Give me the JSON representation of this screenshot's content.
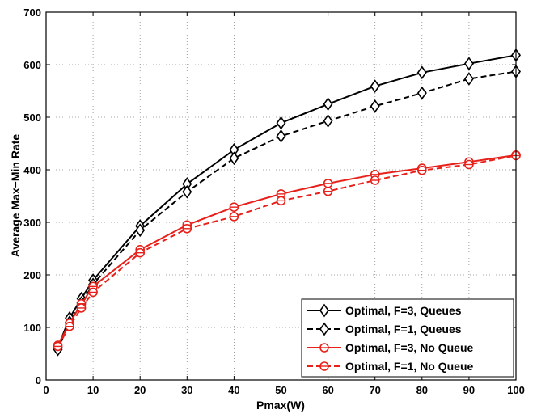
{
  "chart_data": {
    "type": "line",
    "title": "",
    "xlabel": "Pmax(W)",
    "ylabel": "Average Max−Min Rate",
    "xlim": [
      0,
      100
    ],
    "ylim": [
      0,
      700
    ],
    "xticks": [
      0,
      10,
      20,
      30,
      40,
      50,
      60,
      70,
      80,
      90,
      100
    ],
    "yticks": [
      0,
      100,
      200,
      300,
      400,
      500,
      600,
      700
    ],
    "grid": true,
    "legend_position": "bottom-right",
    "x": [
      2.5,
      5,
      7.5,
      10,
      20,
      30,
      40,
      50,
      60,
      70,
      80,
      90,
      100
    ],
    "series": [
      {
        "name": "Optimal, F=3, Queues",
        "color": "#000000",
        "line_style": "solid",
        "marker": "diamond",
        "values": [
          62,
          118,
          155,
          190,
          293,
          373,
          438,
          489,
          525,
          559,
          585,
          602,
          618
        ]
      },
      {
        "name": "Optimal, F=1, Queues",
        "color": "#000000",
        "line_style": "dashed",
        "marker": "diamond",
        "values": [
          58,
          110,
          147,
          182,
          285,
          358,
          422,
          464,
          493,
          521,
          546,
          573,
          587
        ]
      },
      {
        "name": "Optimal, F=3, No Queue",
        "color": "#e8201a",
        "line_style": "solid",
        "marker": "circle",
        "values": [
          66,
          108,
          145,
          178,
          248,
          295,
          329,
          354,
          374,
          391,
          403,
          415,
          428
        ]
      },
      {
        "name": "Optimal, F=1, No Queue",
        "color": "#e8201a",
        "line_style": "dashed",
        "marker": "circle",
        "values": [
          64,
          102,
          137,
          167,
          242,
          288,
          311,
          341,
          359,
          380,
          399,
          410,
          427
        ]
      }
    ]
  }
}
